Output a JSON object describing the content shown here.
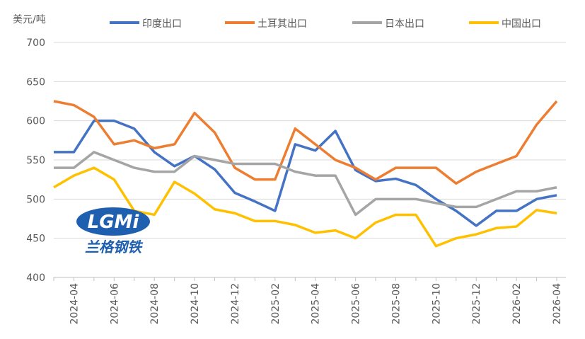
{
  "chart_data": {
    "type": "line",
    "y_axis_label": "美元/吨",
    "categories": [
      null,
      "2024-04",
      null,
      "2024-06",
      null,
      "2024-08",
      null,
      "2024-10",
      null,
      "2024-12",
      null,
      "2025-02",
      null,
      "2025-04",
      null,
      "2025-06",
      null,
      "2025-08",
      null,
      "2025-10",
      null,
      "2025-12",
      null,
      "2026-02",
      null,
      "2026-04"
    ],
    "series": [
      {
        "name": "印度出口",
        "color": "#4472c4",
        "values": [
          560,
          560,
          600,
          600,
          590,
          560,
          542,
          555,
          538,
          508,
          497,
          485,
          570,
          562,
          587,
          537,
          523,
          526,
          518,
          500,
          485,
          466,
          485,
          485,
          500,
          505
        ]
      },
      {
        "name": "土耳其出口",
        "color": "#ed7d31",
        "values": [
          625,
          620,
          605,
          570,
          575,
          565,
          570,
          610,
          585,
          540,
          525,
          525,
          590,
          570,
          550,
          540,
          525,
          540,
          540,
          540,
          520,
          535,
          545,
          555,
          595,
          625
        ]
      },
      {
        "name": "日本出口",
        "color": "#a5a5a5",
        "values": [
          540,
          540,
          560,
          550,
          540,
          535,
          535,
          555,
          550,
          545,
          545,
          545,
          535,
          530,
          530,
          480,
          500,
          500,
          500,
          495,
          490,
          490,
          500,
          510,
          510,
          515
        ]
      },
      {
        "name": "中国出口",
        "color": "#ffc000",
        "values": [
          515,
          530,
          540,
          525,
          485,
          480,
          522,
          507,
          487,
          482,
          472,
          472,
          467,
          457,
          460,
          450,
          470,
          480,
          480,
          440,
          450,
          455,
          463,
          465,
          486,
          482
        ]
      }
    ],
    "ylim": [
      400,
      700
    ],
    "yticks": [
      400,
      450,
      500,
      550,
      600,
      650,
      700
    ],
    "grid": true,
    "legend": "top"
  },
  "logo": {
    "mark": "LGMi",
    "name": "兰格钢铁"
  }
}
